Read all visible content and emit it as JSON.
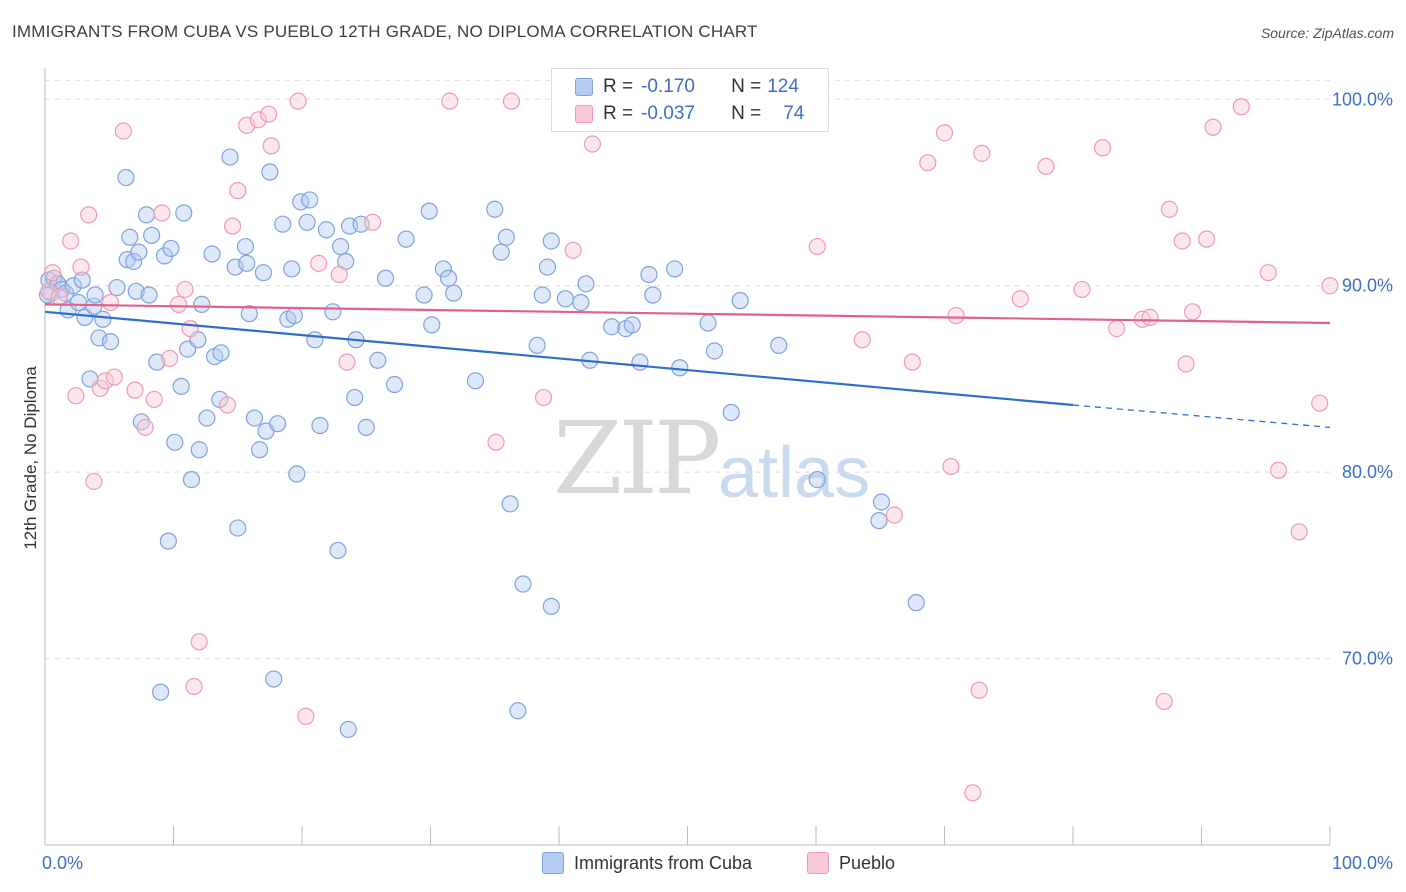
{
  "header": {
    "title": "IMMIGRANTS FROM CUBA VS PUEBLO 12TH GRADE, NO DIPLOMA CORRELATION CHART",
    "source": "Source: ZipAtlas.com"
  },
  "watermark": {
    "zip": "ZIP",
    "atlas": "atlas"
  },
  "legend": {
    "r_label": "R =",
    "n_label": "N =",
    "rows": [
      {
        "name": "Immigrants from Cuba",
        "r": "-0.170",
        "n": "124",
        "color": "#aac4ee"
      },
      {
        "name": "Pueblo",
        "r": "-0.037",
        "n": "74",
        "color": "#f7b9cd"
      }
    ]
  },
  "chart_data": {
    "type": "scatter",
    "title": "IMMIGRANTS FROM CUBA VS PUEBLO 12TH GRADE, NO DIPLOMA CORRELATION CHART",
    "xlabel": "",
    "ylabel": "12th Grade, No Diploma",
    "xlim": [
      0,
      100
    ],
    "ylim": [
      60.0,
      102.0
    ],
    "x_tick_labels": [
      "0.0%",
      "100.0%"
    ],
    "y_ticks": [
      70,
      80,
      90,
      100
    ],
    "y_tick_labels": [
      "70.0%",
      "80.0%",
      "90.0%",
      "100.0%"
    ],
    "grid": true,
    "colors": {
      "cuba_stroke": "#7ea3dc",
      "cuba_fill": "#b5cdf0",
      "pueblo_stroke": "#ee9ab4",
      "pueblo_fill": "#f9c9d8",
      "cuba_line": "#2f6fcc",
      "pueblo_line": "#e0628c",
      "tick_label": "#3f6ec4"
    },
    "series": [
      {
        "name": "Immigrants from Cuba",
        "trend": {
          "x0": 0,
          "y0": 88.6,
          "x1": 80,
          "y1": 83.6,
          "dash_to": 100,
          "dash_y": 82.4
        },
        "points": [
          [
            0.3,
            90.3
          ],
          [
            0.5,
            89.6
          ],
          [
            0.7,
            90.4
          ],
          [
            1.0,
            90.1
          ],
          [
            1.3,
            89.8
          ],
          [
            1.6,
            89.6
          ],
          [
            1.8,
            88.7
          ],
          [
            2.2,
            90.0
          ],
          [
            2.6,
            89.1
          ],
          [
            2.9,
            90.3
          ],
          [
            3.1,
            88.3
          ],
          [
            3.5,
            85.0
          ],
          [
            3.8,
            88.9
          ],
          [
            3.9,
            89.5
          ],
          [
            4.2,
            87.2
          ],
          [
            4.5,
            88.2
          ],
          [
            5.1,
            87.0
          ],
          [
            5.6,
            89.9
          ],
          [
            6.3,
            95.8
          ],
          [
            6.4,
            91.4
          ],
          [
            6.6,
            92.6
          ],
          [
            6.9,
            91.3
          ],
          [
            7.1,
            89.7
          ],
          [
            7.3,
            91.8
          ],
          [
            7.5,
            82.7
          ],
          [
            7.9,
            93.8
          ],
          [
            8.1,
            89.5
          ],
          [
            8.3,
            92.7
          ],
          [
            8.7,
            85.9
          ],
          [
            9.0,
            68.2
          ],
          [
            9.3,
            91.6
          ],
          [
            9.6,
            76.3
          ],
          [
            9.8,
            92.0
          ],
          [
            10.1,
            81.6
          ],
          [
            10.6,
            84.6
          ],
          [
            10.8,
            93.9
          ],
          [
            11.1,
            86.6
          ],
          [
            11.4,
            79.6
          ],
          [
            11.9,
            87.1
          ],
          [
            12.0,
            81.2
          ],
          [
            12.2,
            89.0
          ],
          [
            12.6,
            82.9
          ],
          [
            13.0,
            91.7
          ],
          [
            13.2,
            86.2
          ],
          [
            13.6,
            83.9
          ],
          [
            13.7,
            86.4
          ],
          [
            14.4,
            96.9
          ],
          [
            14.8,
            91.0
          ],
          [
            15.0,
            77.0
          ],
          [
            15.6,
            92.1
          ],
          [
            15.7,
            91.2
          ],
          [
            15.9,
            88.5
          ],
          [
            16.3,
            82.9
          ],
          [
            16.7,
            81.2
          ],
          [
            17.0,
            90.7
          ],
          [
            17.2,
            82.2
          ],
          [
            17.5,
            96.1
          ],
          [
            17.8,
            68.9
          ],
          [
            18.1,
            82.6
          ],
          [
            18.5,
            93.3
          ],
          [
            18.9,
            88.2
          ],
          [
            19.2,
            90.9
          ],
          [
            19.4,
            88.4
          ],
          [
            19.6,
            79.9
          ],
          [
            19.9,
            94.5
          ],
          [
            20.4,
            93.4
          ],
          [
            20.6,
            94.6
          ],
          [
            21.0,
            87.1
          ],
          [
            21.4,
            82.5
          ],
          [
            21.9,
            93.0
          ],
          [
            22.4,
            88.6
          ],
          [
            22.8,
            75.8
          ],
          [
            23.0,
            92.1
          ],
          [
            23.4,
            91.3
          ],
          [
            23.6,
            66.2
          ],
          [
            23.7,
            93.2
          ],
          [
            24.1,
            84.0
          ],
          [
            24.2,
            87.1
          ],
          [
            24.6,
            93.3
          ],
          [
            25.0,
            82.4
          ],
          [
            25.9,
            86.0
          ],
          [
            26.5,
            90.4
          ],
          [
            27.2,
            84.7
          ],
          [
            28.1,
            92.5
          ],
          [
            29.5,
            89.5
          ],
          [
            29.9,
            94.0
          ],
          [
            30.1,
            87.9
          ],
          [
            31.0,
            90.9
          ],
          [
            31.4,
            90.4
          ],
          [
            31.8,
            89.6
          ],
          [
            33.5,
            84.9
          ],
          [
            35.0,
            94.1
          ],
          [
            35.5,
            91.8
          ],
          [
            35.9,
            92.6
          ],
          [
            36.2,
            78.3
          ],
          [
            36.8,
            67.2
          ],
          [
            37.2,
            74.0
          ],
          [
            38.3,
            86.8
          ],
          [
            38.7,
            89.5
          ],
          [
            39.1,
            91.0
          ],
          [
            39.4,
            72.8
          ],
          [
            39.4,
            92.4
          ],
          [
            40.5,
            89.3
          ],
          [
            41.7,
            89.1
          ],
          [
            42.1,
            90.1
          ],
          [
            42.4,
            86.0
          ],
          [
            44.1,
            87.8
          ],
          [
            45.2,
            87.7
          ],
          [
            45.7,
            87.9
          ],
          [
            46.3,
            85.9
          ],
          [
            47.0,
            90.6
          ],
          [
            47.3,
            89.5
          ],
          [
            49.0,
            90.9
          ],
          [
            49.4,
            85.6
          ],
          [
            51.6,
            88.0
          ],
          [
            52.1,
            86.5
          ],
          [
            53.4,
            83.2
          ],
          [
            54.1,
            89.2
          ],
          [
            57.1,
            86.8
          ],
          [
            60.1,
            79.6
          ],
          [
            64.9,
            77.4
          ],
          [
            65.1,
            78.4
          ],
          [
            67.8,
            73.0
          ],
          [
            0.2,
            89.5
          ]
        ]
      },
      {
        "name": "Pueblo",
        "trend": {
          "x0": 0,
          "y0": 89.0,
          "x1": 100,
          "y1": 88.0
        },
        "points": [
          [
            0.3,
            89.7
          ],
          [
            0.6,
            90.7
          ],
          [
            1.1,
            89.4
          ],
          [
            2.0,
            92.4
          ],
          [
            2.4,
            84.1
          ],
          [
            2.8,
            91.0
          ],
          [
            3.4,
            93.8
          ],
          [
            3.8,
            79.5
          ],
          [
            4.3,
            84.5
          ],
          [
            4.7,
            84.9
          ],
          [
            5.1,
            89.1
          ],
          [
            5.4,
            85.1
          ],
          [
            6.1,
            98.3
          ],
          [
            7.0,
            84.4
          ],
          [
            7.8,
            82.4
          ],
          [
            8.5,
            83.9
          ],
          [
            9.1,
            93.9
          ],
          [
            9.7,
            86.1
          ],
          [
            10.4,
            89.0
          ],
          [
            10.9,
            89.8
          ],
          [
            11.3,
            87.7
          ],
          [
            11.6,
            68.5
          ],
          [
            12.0,
            70.9
          ],
          [
            14.2,
            83.6
          ],
          [
            14.6,
            93.2
          ],
          [
            15.0,
            95.1
          ],
          [
            15.7,
            98.6
          ],
          [
            16.6,
            98.9
          ],
          [
            17.4,
            99.2
          ],
          [
            17.6,
            97.5
          ],
          [
            19.7,
            99.9
          ],
          [
            20.3,
            66.9
          ],
          [
            21.3,
            91.2
          ],
          [
            22.9,
            90.6
          ],
          [
            23.5,
            85.9
          ],
          [
            25.5,
            93.4
          ],
          [
            31.5,
            99.9
          ],
          [
            35.1,
            81.6
          ],
          [
            36.3,
            99.9
          ],
          [
            38.8,
            84.0
          ],
          [
            41.1,
            91.9
          ],
          [
            42.6,
            97.6
          ],
          [
            46.6,
            99.9
          ],
          [
            60.1,
            92.1
          ],
          [
            63.6,
            87.1
          ],
          [
            66.1,
            77.7
          ],
          [
            67.5,
            85.9
          ],
          [
            68.7,
            96.6
          ],
          [
            70.0,
            98.2
          ],
          [
            70.5,
            80.3
          ],
          [
            70.9,
            88.4
          ],
          [
            72.2,
            62.8
          ],
          [
            72.7,
            68.3
          ],
          [
            72.9,
            97.1
          ],
          [
            75.9,
            89.3
          ],
          [
            77.9,
            96.4
          ],
          [
            80.7,
            89.8
          ],
          [
            82.3,
            97.4
          ],
          [
            83.4,
            87.7
          ],
          [
            85.4,
            88.2
          ],
          [
            86.0,
            88.3
          ],
          [
            87.1,
            67.7
          ],
          [
            87.5,
            94.1
          ],
          [
            88.5,
            92.4
          ],
          [
            88.8,
            85.8
          ],
          [
            89.3,
            88.6
          ],
          [
            90.4,
            92.5
          ],
          [
            90.9,
            98.5
          ],
          [
            93.1,
            99.6
          ],
          [
            95.2,
            90.7
          ],
          [
            96.0,
            80.1
          ],
          [
            97.6,
            76.8
          ],
          [
            99.2,
            83.7
          ],
          [
            100.0,
            90.0
          ]
        ]
      }
    ]
  }
}
